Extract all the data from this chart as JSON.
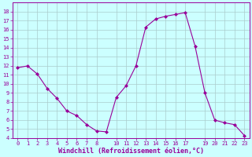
{
  "x": [
    0,
    1,
    2,
    3,
    4,
    5,
    6,
    7,
    8,
    9,
    10,
    11,
    12,
    13,
    14,
    15,
    16,
    17,
    18,
    19,
    20,
    21,
    22,
    23
  ],
  "y": [
    11.8,
    12.0,
    11.1,
    9.5,
    8.4,
    7.0,
    6.5,
    5.5,
    4.8,
    4.7,
    8.5,
    9.8,
    12.0,
    16.3,
    17.2,
    17.5,
    17.7,
    17.9,
    14.2,
    9.0,
    6.0,
    5.7,
    5.5,
    4.3
  ],
  "line_color": "#990099",
  "marker": "D",
  "marker_size": 2,
  "bg_color": "#ccffff",
  "grid_color": "#aacccc",
  "xlabel": "Windchill (Refroidissement éolien,°C)",
  "ylim": [
    4,
    19
  ],
  "xlim": [
    -0.5,
    23.5
  ],
  "yticks": [
    4,
    5,
    6,
    7,
    8,
    9,
    10,
    11,
    12,
    13,
    14,
    15,
    16,
    17,
    18
  ],
  "xticks": [
    0,
    1,
    2,
    3,
    4,
    5,
    6,
    7,
    8,
    10,
    11,
    12,
    13,
    14,
    15,
    16,
    17,
    19,
    20,
    21,
    22,
    23
  ],
  "tick_fontsize": 5.0,
  "xlabel_fontsize": 6.0,
  "tick_color": "#990099",
  "axis_label_color": "#990099"
}
